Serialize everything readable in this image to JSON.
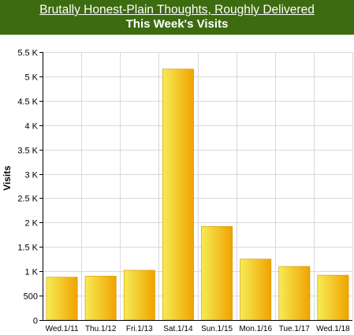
{
  "header": {
    "blog_title": "Brutally Honest-Plain Thoughts, Roughly Delivered",
    "chart_title": "This Week's Visits"
  },
  "colors": {
    "header_bg": "#3c6b10",
    "bar_light": "#f6ec55",
    "bar_dark": "#f0a300",
    "grid": "#d9d9d9",
    "axis": "#000000"
  },
  "chart_data": {
    "type": "bar",
    "title": "This Week's Visits",
    "xlabel": "",
    "ylabel": "Visits",
    "ylim": [
      0,
      5500
    ],
    "yticks": [
      "0",
      "500",
      "1 K",
      "1.5 K",
      "2 K",
      "2.5 K",
      "3 K",
      "3.5 K",
      "4 K",
      "4.5 K",
      "5 K",
      "5.5 K"
    ],
    "ytick_values": [
      0,
      500,
      1000,
      1500,
      2000,
      2500,
      3000,
      3500,
      4000,
      4500,
      5000,
      5500
    ],
    "grid": true,
    "categories": [
      "Wed.1/11",
      "Thu.1/12",
      "Fri.1/13",
      "Sat.1/14",
      "Sun.1/15",
      "Mon.1/16",
      "Tue.1/17",
      "Wed.1/18"
    ],
    "values": [
      880,
      900,
      1020,
      5150,
      1920,
      1250,
      1100,
      920
    ]
  }
}
